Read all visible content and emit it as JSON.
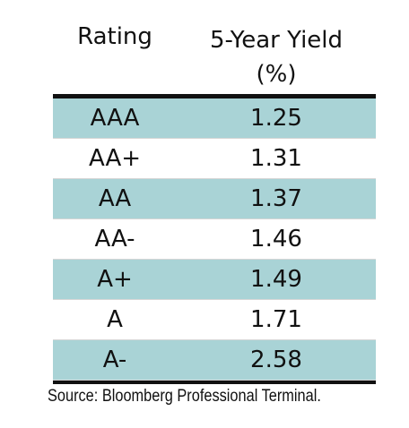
{
  "table": {
    "headers": {
      "rating": "Rating",
      "yield_line1": "5-Year Yield",
      "yield_line2": "(%)"
    },
    "rows": [
      {
        "rating": "AAA",
        "yield": "1.25",
        "shaded": true
      },
      {
        "rating": "AA+",
        "yield": "1.31",
        "shaded": false
      },
      {
        "rating": "AA",
        "yield": "1.37",
        "shaded": true
      },
      {
        "rating": "AA-",
        "yield": "1.46",
        "shaded": false
      },
      {
        "rating": "A+",
        "yield": "1.49",
        "shaded": true
      },
      {
        "rating": "A",
        "yield": "1.71",
        "shaded": false
      },
      {
        "rating": "A-",
        "yield": "2.58",
        "shaded": true
      }
    ],
    "shade_color": "#a9d3d6"
  },
  "source": "Source: Bloomberg Professional Terminal."
}
